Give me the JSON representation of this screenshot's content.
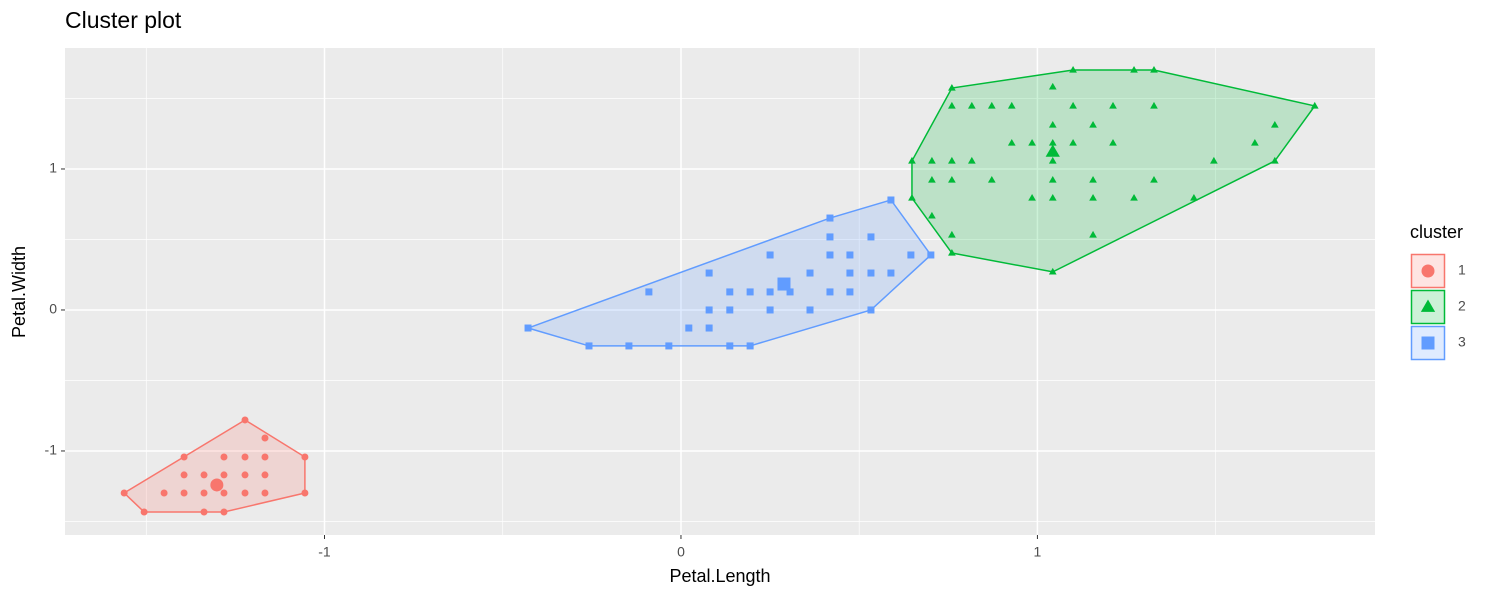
{
  "chart_data": {
    "type": "cluster-scatter",
    "title": "Cluster plot",
    "x_label": "Petal.Length",
    "y_label": "Petal.Width",
    "legend_title": "cluster",
    "xlim": [
      -1.728,
      1.947
    ],
    "ylim": [
      -1.596,
      1.858
    ],
    "xticks": [
      -1,
      0,
      1
    ],
    "yticks": [
      -1,
      0,
      1
    ],
    "grid": true,
    "legend": "right",
    "series": [
      {
        "name": "1",
        "color": "#F8766D",
        "shape": "circle",
        "center": [
          -1.302,
          -1.241
        ],
        "x": [
          -1.562,
          -1.506,
          -1.45,
          -1.394,
          -1.394,
          -1.394,
          -1.338,
          -1.338,
          -1.338,
          -1.282,
          -1.282,
          -1.282,
          -1.282,
          -1.223,
          -1.223,
          -1.223,
          -1.223,
          -1.167,
          -1.167,
          -1.167,
          -1.167,
          -1.055,
          -1.055
        ],
        "values": [
          -1.298,
          -1.433,
          -1.298,
          -1.298,
          -1.17,
          -1.043,
          -1.298,
          -1.17,
          -1.433,
          -1.298,
          -1.17,
          -1.043,
          -1.433,
          -0.78,
          -1.043,
          -1.17,
          -1.298,
          -0.908,
          -1.043,
          -1.17,
          -1.298,
          -1.043,
          -1.298
        ]
      },
      {
        "name": "2",
        "color": "#00BA38",
        "shape": "triangle",
        "center": [
          1.043,
          1.121
        ],
        "x": [
          0.76,
          1.1,
          1.271,
          1.327,
          1.043,
          0.76,
          0.816,
          0.872,
          0.928,
          1.1,
          1.212,
          1.327,
          1.778,
          1.043,
          1.156,
          1.666,
          0.928,
          0.985,
          1.043,
          1.1,
          1.212,
          1.61,
          0.648,
          0.704,
          0.76,
          0.816,
          1.043,
          1.495,
          1.666,
          0.704,
          0.76,
          0.872,
          1.043,
          1.156,
          1.327,
          0.648,
          0.985,
          1.043,
          1.156,
          1.271,
          1.439,
          0.704,
          0.76,
          1.156,
          0.76,
          1.043
        ],
        "values": [
          1.574,
          1.702,
          1.702,
          1.702,
          1.582,
          1.447,
          1.447,
          1.447,
          1.447,
          1.447,
          1.447,
          1.447,
          1.447,
          1.312,
          1.312,
          1.312,
          1.184,
          1.184,
          1.184,
          1.184,
          1.184,
          1.184,
          1.057,
          1.057,
          1.057,
          1.057,
          1.057,
          1.057,
          1.057,
          0.922,
          0.922,
          0.922,
          0.922,
          0.922,
          0.922,
          0.794,
          0.794,
          0.794,
          0.794,
          0.794,
          0.794,
          0.667,
          0.532,
          0.532,
          0.404,
          0.27
        ]
      },
      {
        "name": "3",
        "color": "#619CFF",
        "shape": "square",
        "center": [
          0.289,
          0.184
        ],
        "x": [
          -0.429,
          -0.258,
          -0.146,
          -0.09,
          -0.034,
          0.022,
          0.079,
          0.079,
          0.079,
          0.137,
          0.137,
          0.137,
          0.194,
          0.194,
          0.25,
          0.25,
          0.25,
          0.306,
          0.362,
          0.362,
          0.418,
          0.418,
          0.418,
          0.418,
          0.474,
          0.474,
          0.474,
          0.533,
          0.533,
          0.533,
          0.589,
          0.589,
          0.645,
          0.701
        ],
        "values": [
          -0.128,
          -0.255,
          -0.255,
          0.128,
          -0.255,
          -0.128,
          -0.128,
          0,
          0.262,
          0,
          0.128,
          -0.255,
          0.128,
          -0.255,
          0.128,
          0.39,
          0,
          0.128,
          0,
          0.262,
          0.128,
          0.39,
          0.518,
          0.652,
          0.128,
          0.262,
          0.39,
          0,
          0.262,
          0.518,
          0.262,
          0.78,
          0.39,
          0.39
        ]
      }
    ]
  }
}
